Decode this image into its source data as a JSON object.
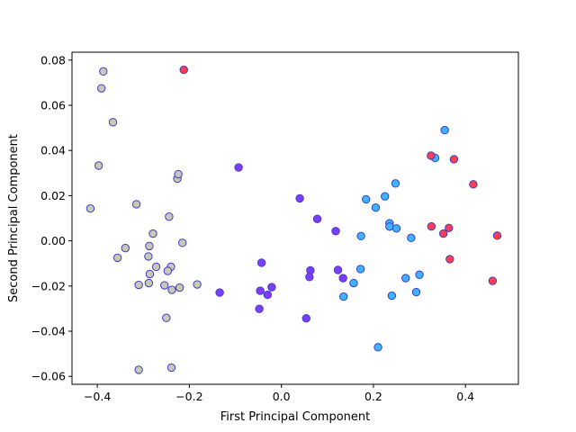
{
  "chart_data": {
    "type": "scatter",
    "title": "",
    "xlabel": "First Principal Component",
    "ylabel": "Second Principal Component",
    "xlim": [
      -0.455,
      0.515
    ],
    "ylim": [
      -0.0635,
      0.0835
    ],
    "xticks": [
      -0.4,
      -0.2,
      0.0,
      0.2,
      0.4
    ],
    "xtick_labels": [
      "−0.4",
      "−0.2",
      "0.0",
      "0.2",
      "0.4"
    ],
    "yticks": [
      -0.06,
      -0.04,
      -0.02,
      0.0,
      0.02,
      0.04,
      0.06,
      0.08
    ],
    "ytick_labels": [
      "−0.06",
      "−0.04",
      "−0.02",
      "0.00",
      "0.02",
      "0.04",
      "0.06",
      "0.08"
    ],
    "grid": false,
    "edge_color": "#3d3dc8",
    "series": [
      {
        "color": "#c8c8b4",
        "points": [
          [
            -0.387,
            0.075
          ],
          [
            -0.391,
            0.0675
          ],
          [
            -0.366,
            0.0525
          ],
          [
            -0.397,
            0.0333
          ],
          [
            -0.415,
            0.0143
          ],
          [
            -0.315,
            0.0162
          ],
          [
            -0.244,
            0.0107
          ],
          [
            -0.226,
            0.0275
          ],
          [
            -0.224,
            0.0295
          ],
          [
            -0.279,
            0.0032
          ],
          [
            -0.215,
            -0.0009
          ],
          [
            -0.287,
            -0.0023
          ],
          [
            -0.339,
            -0.0032
          ],
          [
            -0.356,
            -0.0075
          ],
          [
            -0.289,
            -0.0069
          ],
          [
            -0.272,
            -0.0115
          ],
          [
            -0.24,
            -0.0115
          ],
          [
            -0.247,
            -0.0133
          ],
          [
            -0.286,
            -0.0147
          ],
          [
            -0.31,
            -0.0195
          ],
          [
            -0.288,
            -0.0187
          ],
          [
            -0.254,
            -0.0197
          ],
          [
            -0.238,
            -0.0217
          ],
          [
            -0.221,
            -0.0207
          ],
          [
            -0.183,
            -0.0193
          ],
          [
            -0.25,
            -0.0341
          ],
          [
            -0.31,
            -0.0571
          ],
          [
            -0.239,
            -0.0561
          ]
        ]
      },
      {
        "color": "#7f3cff",
        "points": [
          [
            -0.093,
            0.0325
          ],
          [
            -0.134,
            -0.0229
          ],
          [
            -0.043,
            -0.0097
          ],
          [
            -0.046,
            -0.0221
          ],
          [
            -0.03,
            -0.0239
          ],
          [
            -0.021,
            -0.0205
          ],
          [
            -0.048,
            -0.0301
          ],
          [
            0.04,
            0.0188
          ],
          [
            0.078,
            0.0097
          ],
          [
            0.063,
            -0.0131
          ],
          [
            0.061,
            -0.016
          ],
          [
            0.054,
            -0.0343
          ],
          [
            0.118,
            0.0043
          ],
          [
            0.123,
            -0.0129
          ],
          [
            0.134,
            -0.0165
          ]
        ]
      },
      {
        "color": "#3cb4ff",
        "points": [
          [
            0.355,
            0.049
          ],
          [
            0.334,
            0.0367
          ],
          [
            0.248,
            0.0254
          ],
          [
            0.225,
            0.0197
          ],
          [
            0.184,
            0.0184
          ],
          [
            0.205,
            0.0147
          ],
          [
            0.235,
            0.0078
          ],
          [
            0.235,
            0.0063
          ],
          [
            0.25,
            0.0055
          ],
          [
            0.173,
            0.0021
          ],
          [
            0.282,
            0.0013
          ],
          [
            0.172,
            -0.0125
          ],
          [
            0.157,
            -0.0187
          ],
          [
            0.135,
            -0.0247
          ],
          [
            0.3,
            -0.015
          ],
          [
            0.27,
            -0.0165
          ],
          [
            0.24,
            -0.0243
          ],
          [
            0.293,
            -0.0227
          ],
          [
            0.21,
            -0.0471
          ]
        ]
      },
      {
        "color": "#ff3c50",
        "points": [
          [
            -0.212,
            0.0757
          ],
          [
            0.325,
            0.0377
          ],
          [
            0.375,
            0.0361
          ],
          [
            0.417,
            0.025
          ],
          [
            0.326,
            0.0064
          ],
          [
            0.364,
            0.0057
          ],
          [
            0.352,
            0.0032
          ],
          [
            0.469,
            0.0023
          ],
          [
            0.366,
            -0.0081
          ],
          [
            0.459,
            -0.0177
          ]
        ]
      }
    ]
  }
}
